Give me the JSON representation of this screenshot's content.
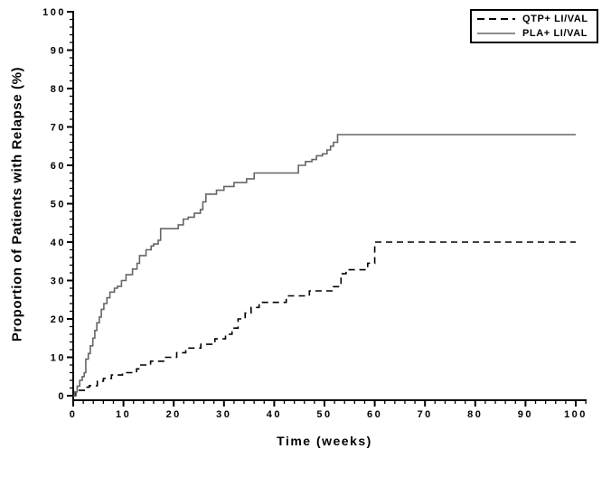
{
  "chart_data": {
    "type": "line",
    "subtype": "kaplan-meier-step",
    "title": "",
    "xlabel": "Time (weeks)",
    "ylabel": "Proportion of Patients with Relapse (%)",
    "xlim": [
      0,
      100
    ],
    "ylim": [
      0,
      100
    ],
    "x_ticks": [
      0,
      10,
      20,
      30,
      40,
      50,
      60,
      70,
      80,
      90,
      100
    ],
    "y_ticks": [
      0,
      10,
      20,
      30,
      40,
      50,
      60,
      70,
      80,
      90,
      100
    ],
    "minor_tick_step": 2,
    "grid": false,
    "axis_color": "#000000",
    "legend_position": "top-right",
    "series": [
      {
        "name": "QTP+ LI/VAL",
        "line_style": "dashed",
        "color": "#000000",
        "points": [
          [
            0,
            0
          ],
          [
            0.5,
            0.8
          ],
          [
            1.2,
            1.4
          ],
          [
            2.2,
            2.2
          ],
          [
            3.2,
            2.6
          ],
          [
            4.8,
            3.8
          ],
          [
            6,
            4.5
          ],
          [
            7.6,
            5.4
          ],
          [
            9.8,
            6
          ],
          [
            12.6,
            7
          ],
          [
            13.2,
            8
          ],
          [
            15.4,
            9
          ],
          [
            18,
            10
          ],
          [
            20.6,
            11.2
          ],
          [
            22.4,
            12.4
          ],
          [
            25.4,
            13.4
          ],
          [
            28.2,
            14.8
          ],
          [
            30.3,
            16
          ],
          [
            31.6,
            17.6
          ],
          [
            32.8,
            20
          ],
          [
            34.2,
            21.5
          ],
          [
            35.4,
            23
          ],
          [
            37,
            24.3
          ],
          [
            42.4,
            26
          ],
          [
            47,
            27.3
          ],
          [
            51.8,
            28.4
          ],
          [
            53.3,
            31.8
          ],
          [
            54.3,
            32.8
          ],
          [
            58.6,
            34.5
          ],
          [
            60,
            40
          ],
          [
            100,
            40
          ]
        ]
      },
      {
        "name": "PLA+ LI/VAL",
        "line_style": "solid",
        "color": "#666666",
        "points": [
          [
            0,
            0
          ],
          [
            0.3,
            1
          ],
          [
            0.8,
            2.5
          ],
          [
            1.3,
            4
          ],
          [
            1.8,
            5
          ],
          [
            2.2,
            6
          ],
          [
            2.5,
            9.5
          ],
          [
            3,
            11
          ],
          [
            3.4,
            13
          ],
          [
            3.9,
            15
          ],
          [
            4.3,
            17
          ],
          [
            4.7,
            19
          ],
          [
            5.2,
            20.5
          ],
          [
            5.6,
            22.5
          ],
          [
            6.1,
            24
          ],
          [
            6.7,
            25.5
          ],
          [
            7.3,
            27
          ],
          [
            8.2,
            28
          ],
          [
            8.8,
            28.5
          ],
          [
            9.6,
            30
          ],
          [
            10.5,
            31.5
          ],
          [
            11.8,
            33
          ],
          [
            12.7,
            34.5
          ],
          [
            13.2,
            36.5
          ],
          [
            14.5,
            38
          ],
          [
            15.5,
            39
          ],
          [
            16,
            39.5
          ],
          [
            16.9,
            40.5
          ],
          [
            17.4,
            43.5
          ],
          [
            20.9,
            44.5
          ],
          [
            21.9,
            46
          ],
          [
            22.9,
            46.5
          ],
          [
            24.1,
            47.5
          ],
          [
            25.3,
            48.5
          ],
          [
            25.8,
            50.5
          ],
          [
            26.4,
            52.5
          ],
          [
            28.5,
            53.5
          ],
          [
            30,
            54.5
          ],
          [
            32,
            55.5
          ],
          [
            34.5,
            56.5
          ],
          [
            36,
            58
          ],
          [
            44.8,
            60
          ],
          [
            46.2,
            61
          ],
          [
            47.5,
            61.5
          ],
          [
            48.4,
            62.5
          ],
          [
            49.6,
            63
          ],
          [
            50.5,
            64
          ],
          [
            51.2,
            65
          ],
          [
            51.8,
            66
          ],
          [
            52.6,
            68
          ],
          [
            100,
            68
          ]
        ]
      }
    ]
  }
}
